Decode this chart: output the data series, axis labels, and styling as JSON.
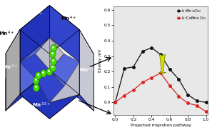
{
  "black_x": [
    0.0,
    0.1,
    0.2,
    0.3,
    0.4,
    0.5,
    0.6,
    0.7,
    0.8,
    0.9,
    1.0
  ],
  "black_y": [
    0.0,
    0.22,
    0.23,
    0.33,
    0.355,
    0.31,
    0.215,
    0.15,
    0.05,
    0.01,
    0.0
  ],
  "red_x": [
    0.0,
    0.1,
    0.2,
    0.3,
    0.4,
    0.5,
    0.6,
    0.7,
    0.8,
    0.9,
    1.0
  ],
  "red_y": [
    0.0,
    0.045,
    0.08,
    0.13,
    0.16,
    0.19,
    0.11,
    0.04,
    -0.005,
    -0.02,
    -0.06
  ],
  "black_label": "Li$_7$Mn$_{16}$O$_{32}$",
  "red_label": "Li$_7$CoMn$_{15}$O$_{32}$",
  "xlabel": "Projected migration pathway",
  "ylabel": "Energy /eV",
  "ylim": [
    -0.08,
    0.62
  ],
  "xlim": [
    -0.02,
    1.02
  ],
  "yticks": [
    0.0,
    0.1,
    0.2,
    0.3,
    0.4,
    0.5,
    0.6
  ],
  "xticks": [
    0.0,
    0.2,
    0.4,
    0.6,
    0.8,
    1.0
  ],
  "black_color": "#111111",
  "red_color": "#dd2222",
  "bg_color": "#e8e8e8",
  "col_blue_dark": "#2233bb",
  "col_blue_med": "#3344cc",
  "col_blue_lt": "#5566dd",
  "col_gray_lt": "#bbbbcc",
  "col_gray": "#999999",
  "col_white": "#e8e8e8",
  "col_green": "#44dd00",
  "arrow_color": "#d0e000"
}
